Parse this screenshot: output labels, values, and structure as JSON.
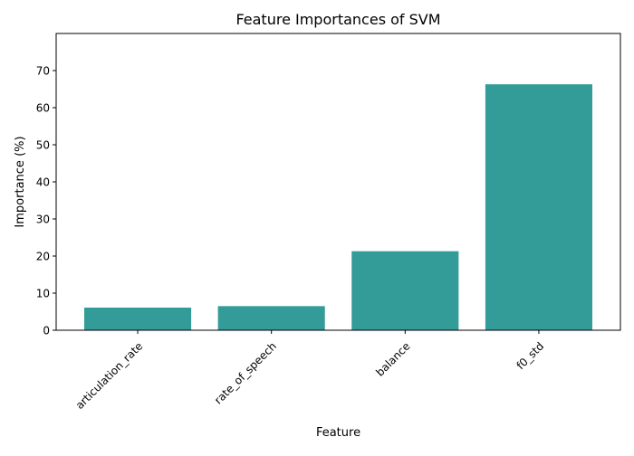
{
  "chart_data": {
    "type": "bar",
    "title": "Feature Importances of SVM",
    "xlabel": "Feature",
    "ylabel": "Importance (%)",
    "categories": [
      "articulation_rate",
      "rate_of_speech",
      "balance",
      "f0_std"
    ],
    "values": [
      6.1,
      6.5,
      21.3,
      66.3
    ],
    "ylim": [
      0,
      80
    ],
    "yticks": [
      0,
      10,
      20,
      30,
      40,
      50,
      60,
      70
    ],
    "bar_color": "#339b98",
    "grid": false,
    "legend": "none"
  }
}
